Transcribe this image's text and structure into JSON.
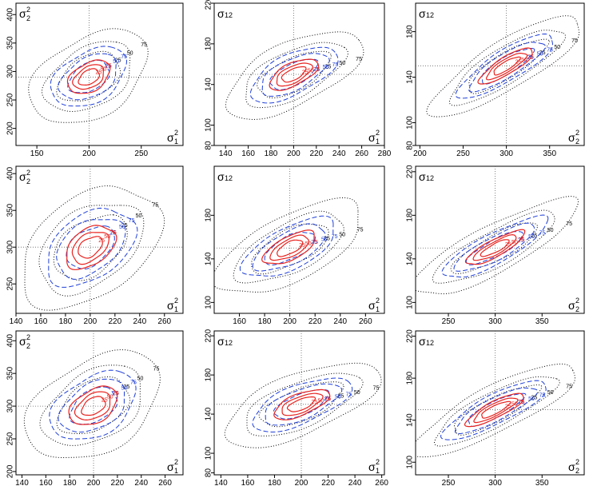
{
  "chart_data": [
    {
      "type": "contour",
      "panel": "row1-col1",
      "xlabel": "σ",
      "xlabel_sup": "2",
      "xlabel_sub": "1",
      "ylabel": "σ",
      "ylabel_sup": "2",
      "ylabel_sub": "2",
      "xlim": [
        130,
        290
      ],
      "ylim": [
        170,
        420
      ],
      "xticks": [
        150,
        200,
        250
      ],
      "yticks": [
        200,
        250,
        300,
        350,
        400
      ],
      "center": [
        200,
        290
      ],
      "cov": [
        [
          420,
          250
        ],
        [
          250,
          900
        ]
      ],
      "contour_labels": [
        "25",
        "50",
        "75"
      ]
    },
    {
      "type": "contour",
      "panel": "row1-col2",
      "xlabel": "σ",
      "xlabel_sup": "2",
      "xlabel_sub": "1",
      "ylabel": "σ",
      "ylabel_sub": "12",
      "xlim": [
        130,
        280
      ],
      "ylim": [
        80,
        220
      ],
      "xticks": [
        140,
        160,
        180,
        200,
        220,
        240,
        260,
        280
      ],
      "yticks": [
        80,
        100,
        140,
        180,
        220
      ],
      "center": [
        200,
        150
      ],
      "cov": [
        [
          450,
          200
        ],
        [
          200,
          230
        ]
      ],
      "contour_labels": [
        "25",
        "50",
        "75"
      ]
    },
    {
      "type": "contour",
      "panel": "row1-col3",
      "xlabel": "σ",
      "xlabel_sup": "2",
      "xlabel_sub": "2",
      "ylabel": "σ",
      "ylabel_sub": "12",
      "xlim": [
        195,
        390
      ],
      "ylim": [
        80,
        205
      ],
      "xticks": [
        200,
        250,
        300,
        350
      ],
      "yticks": [
        80,
        100,
        140,
        180
      ],
      "center": [
        300,
        150
      ],
      "cov": [
        [
          900,
          380
        ],
        [
          380,
          230
        ]
      ],
      "contour_labels": [
        "25",
        "50",
        "75"
      ]
    },
    {
      "type": "contour",
      "panel": "row2-col1",
      "xlabel": "σ",
      "xlabel_sup": "2",
      "xlabel_sub": "1",
      "ylabel": "σ",
      "ylabel_sup": "2",
      "ylabel_sub": "2",
      "xlim": [
        140,
        275
      ],
      "ylim": [
        210,
        410
      ],
      "xticks": [
        140,
        160,
        180,
        200,
        220,
        240,
        260
      ],
      "yticks": [
        250,
        300,
        350,
        400
      ],
      "center": [
        200,
        300
      ],
      "cov": [
        [
          420,
          250
        ],
        [
          250,
          900
        ]
      ],
      "contour_labels": [
        "25",
        "50",
        "75"
      ]
    },
    {
      "type": "contour",
      "panel": "row2-col2",
      "xlabel": "σ",
      "xlabel_sup": "2",
      "xlabel_sub": "1",
      "ylabel": "σ",
      "ylabel_sub": "12",
      "xlim": [
        140,
        275
      ],
      "ylim": [
        90,
        225
      ],
      "xticks": [
        160,
        180,
        200,
        220,
        240,
        260
      ],
      "yticks": [
        100,
        140,
        180
      ],
      "center": [
        200,
        150
      ],
      "cov": [
        [
          420,
          200
        ],
        [
          200,
          230
        ]
      ],
      "contour_labels": [
        "25",
        "50",
        "75"
      ]
    },
    {
      "type": "contour",
      "panel": "row2-col3",
      "xlabel": "σ",
      "xlabel_sup": "2",
      "xlabel_sub": "2",
      "ylabel": "σ",
      "ylabel_sub": "12",
      "xlim": [
        215,
        395
      ],
      "ylim": [
        90,
        225
      ],
      "xticks": [
        250,
        300,
        350
      ],
      "yticks": [
        100,
        140,
        180,
        220
      ],
      "center": [
        300,
        150
      ],
      "cov": [
        [
          900,
          380
        ],
        [
          380,
          230
        ]
      ],
      "contour_labels": [
        "25",
        "50",
        "75"
      ]
    },
    {
      "type": "contour",
      "panel": "row3-col1",
      "xlabel": "σ",
      "xlabel_sup": "2",
      "xlabel_sub": "1",
      "ylabel": "σ",
      "ylabel_sup": "2",
      "ylabel_sub": "2",
      "xlim": [
        135,
        275
      ],
      "ylim": [
        195,
        415
      ],
      "xticks": [
        140,
        160,
        180,
        200,
        220,
        240,
        260
      ],
      "yticks": [
        200,
        250,
        300,
        350,
        400
      ],
      "center": [
        200,
        300
      ],
      "cov": [
        [
          420,
          250
        ],
        [
          250,
          900
        ]
      ],
      "contour_labels": [
        "25",
        "50",
        "75"
      ]
    },
    {
      "type": "contour",
      "panel": "row3-col2",
      "xlabel": "σ",
      "xlabel_sup": "2",
      "xlabel_sub": "1",
      "ylabel": "σ",
      "ylabel_sub": "12",
      "xlim": [
        135,
        262
      ],
      "ylim": [
        78,
        225
      ],
      "xticks": [
        140,
        160,
        180,
        200,
        220,
        240,
        260
      ],
      "yticks": [
        80,
        100,
        140,
        180,
        220
      ],
      "center": [
        200,
        150
      ],
      "cov": [
        [
          420,
          200
        ],
        [
          200,
          230
        ]
      ],
      "contour_labels": [
        "25",
        "50",
        "75"
      ]
    },
    {
      "type": "contour",
      "panel": "row3-col3",
      "xlabel": "σ",
      "xlabel_sup": "2",
      "xlabel_sub": "2",
      "ylabel": "σ",
      "ylabel_sub": "12",
      "xlim": [
        215,
        395
      ],
      "ylim": [
        88,
        225
      ],
      "xticks": [
        250,
        300,
        350
      ],
      "yticks": [
        100,
        140,
        180,
        220
      ],
      "center": [
        300,
        150
      ],
      "cov": [
        [
          900,
          380
        ],
        [
          380,
          230
        ]
      ],
      "contour_labels": [
        "25",
        "50",
        "75"
      ]
    }
  ],
  "series": [
    {
      "name": "dotted-black",
      "color": "#000000",
      "levels": [
        25,
        50,
        75
      ]
    },
    {
      "name": "dashed-blue",
      "color": "#1f3fd8",
      "levels": [
        25,
        50,
        75
      ]
    },
    {
      "name": "solid-red",
      "color": "#e8231f",
      "levels": [
        25,
        50,
        75
      ]
    }
  ]
}
